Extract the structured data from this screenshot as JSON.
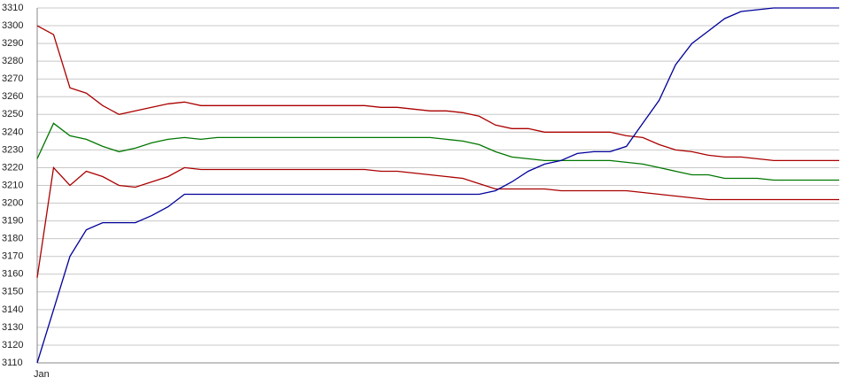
{
  "chart_data": {
    "type": "line",
    "categories": [
      "Jan",
      null,
      null,
      null,
      null,
      null,
      null,
      null,
      null,
      null,
      null,
      null,
      null,
      null,
      null,
      null,
      null,
      null,
      null,
      null,
      null,
      null,
      null,
      null,
      null,
      null,
      null,
      null,
      null,
      null,
      null,
      null,
      null,
      null,
      null,
      null,
      null,
      null,
      null,
      null,
      null,
      null,
      null,
      null,
      null,
      null,
      null,
      null,
      null,
      null
    ],
    "series": [
      {
        "color": "#aa0000",
        "values": [
          3300,
          3295,
          3265,
          3262,
          3255,
          3250,
          3252,
          3254,
          3256,
          3257,
          3255,
          3255,
          3255,
          3255,
          3255,
          3255,
          3255,
          3255,
          3255,
          3255,
          3255,
          3254,
          3254,
          3253,
          3252,
          3252,
          3251,
          3249,
          3244,
          3242,
          3242,
          3240,
          3240,
          3240,
          3240,
          3240,
          3238,
          3237,
          3233,
          3230,
          3229,
          3227,
          3226,
          3226,
          3225,
          3224,
          3224,
          3224,
          3224,
          3224
        ]
      },
      {
        "color": "#007700",
        "values": [
          3225,
          3245,
          3238,
          3236,
          3232,
          3229,
          3231,
          3234,
          3236,
          3237,
          3236,
          3237,
          3237,
          3237,
          3237,
          3237,
          3237,
          3237,
          3237,
          3237,
          3237,
          3237,
          3237,
          3237,
          3237,
          3236,
          3235,
          3233,
          3229,
          3226,
          3225,
          3224,
          3224,
          3224,
          3224,
          3224,
          3223,
          3222,
          3220,
          3218,
          3216,
          3216,
          3214,
          3214,
          3214,
          3213,
          3213,
          3213,
          3213,
          3213
        ]
      },
      {
        "color": "#aa0000",
        "values": [
          3158,
          3220,
          3210,
          3218,
          3215,
          3210,
          3209,
          3212,
          3215,
          3220,
          3219,
          3219,
          3219,
          3219,
          3219,
          3219,
          3219,
          3219,
          3219,
          3219,
          3219,
          3218,
          3218,
          3217,
          3216,
          3215,
          3214,
          3211,
          3208,
          3208,
          3208,
          3208,
          3207,
          3207,
          3207,
          3207,
          3207,
          3206,
          3205,
          3204,
          3203,
          3202,
          3202,
          3202,
          3202,
          3202,
          3202,
          3202,
          3202,
          3202
        ]
      },
      {
        "color": "#000099",
        "values": [
          3110,
          3140,
          3170,
          3185,
          3189,
          3189,
          3189,
          3193,
          3198,
          3205,
          3205,
          3205,
          3205,
          3205,
          3205,
          3205,
          3205,
          3205,
          3205,
          3205,
          3205,
          3205,
          3205,
          3205,
          3205,
          3205,
          3205,
          3205,
          3207,
          3212,
          3218,
          3222,
          3224,
          3228,
          3229,
          3229,
          3232,
          3245,
          3258,
          3278,
          3290,
          3297,
          3304,
          3308,
          3309,
          3310,
          3310,
          3310,
          3310,
          3310
        ]
      }
    ],
    "ylim": [
      3110,
      3310
    ],
    "yticks": [
      3110,
      3120,
      3130,
      3140,
      3150,
      3160,
      3170,
      3180,
      3190,
      3200,
      3210,
      3220,
      3230,
      3240,
      3250,
      3260,
      3270,
      3280,
      3290,
      3300,
      3310
    ],
    "grid": true
  }
}
